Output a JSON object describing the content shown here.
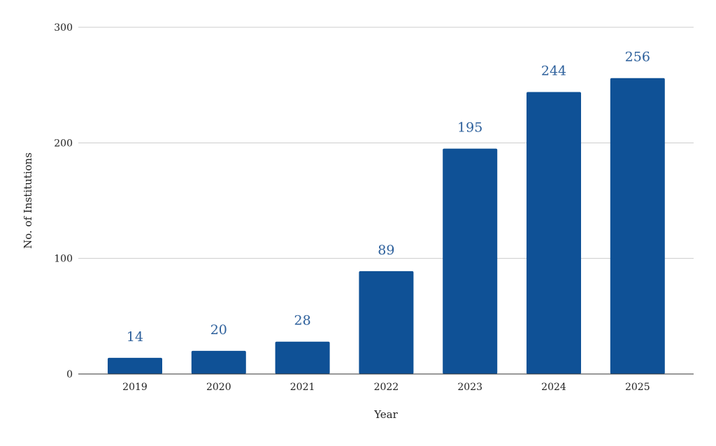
{
  "chart_data": {
    "type": "bar",
    "title": "",
    "xlabel": "Year",
    "ylabel": "No. of Institutions",
    "categories": [
      "2019",
      "2020",
      "2021",
      "2022",
      "2023",
      "2024",
      "2025"
    ],
    "values": [
      14,
      20,
      28,
      89,
      195,
      244,
      256
    ],
    "ylim": [
      0,
      300
    ],
    "yticks": [
      0,
      100,
      200,
      300
    ],
    "grid": true,
    "legend": "none",
    "bar_color": "#0f5196",
    "label_color": "#2c5f9b"
  }
}
